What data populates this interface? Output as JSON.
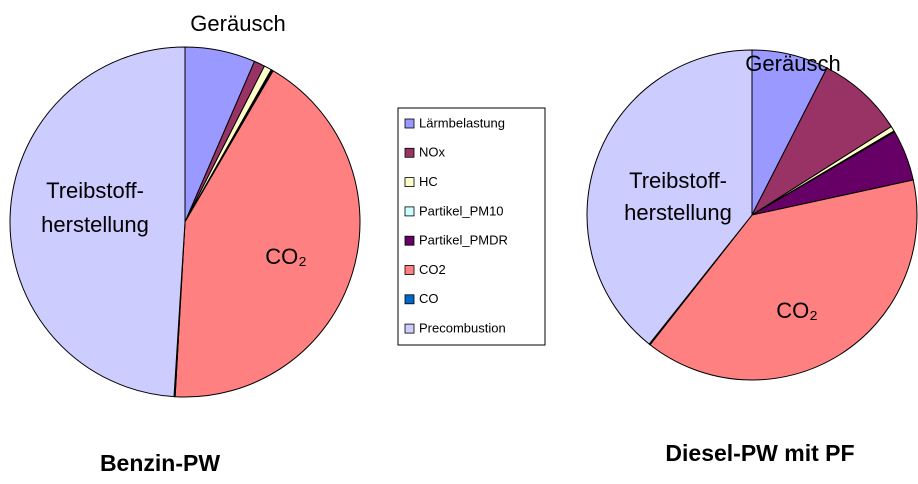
{
  "chart_data": [
    {
      "type": "pie",
      "title": "Benzin-PW",
      "categories": [
        "Lärmbelastung",
        "NOx",
        "HC",
        "Partikel_PM10",
        "Partikel_PMDR",
        "CO2",
        "CO",
        "Precombustion"
      ],
      "colors": [
        "#9999ff",
        "#993366",
        "#ffffcc",
        "#ccffff",
        "#660066",
        "#ff8080",
        "#0066cc",
        "#ccccff"
      ],
      "values": [
        6.5,
        1,
        0.7,
        0.1,
        0.1,
        42.5,
        0.1,
        49
      ],
      "annotations": [
        "Geräusch",
        "Treibstoff-",
        "herstellung",
        "CO₂"
      ]
    },
    {
      "type": "pie",
      "title": "Diesel-PW mit PF",
      "values": [
        7.5,
        8.5,
        0.5,
        0.1,
        5,
        39,
        0.1,
        39.3
      ],
      "annotations": [
        "Geräusch",
        "Treibstoff-",
        "herstellung",
        "CO₂"
      ]
    }
  ]
}
